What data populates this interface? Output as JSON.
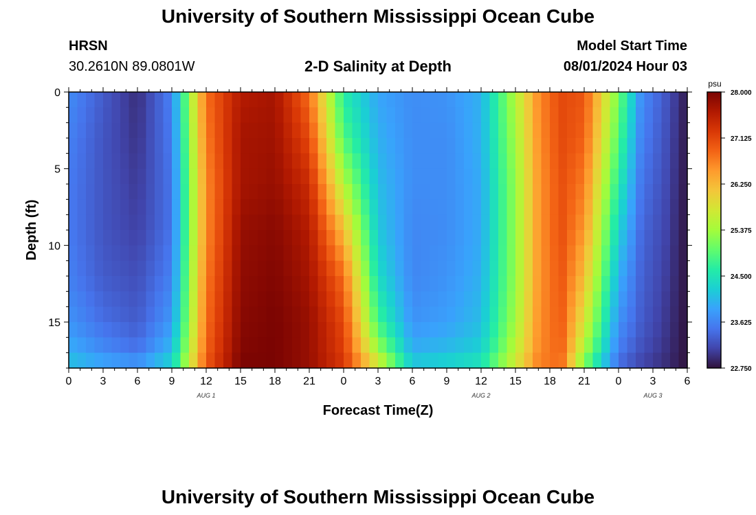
{
  "header": {
    "title": "University of Southern Mississippi Ocean Cube",
    "station": "HRSN",
    "coordinates": "30.2610N  89.0801W",
    "subtitle": "2-D Salinity at Depth",
    "model_start_label": "Model Start Time",
    "model_start_value": "08/01/2024 Hour 03"
  },
  "footer": {
    "title": "University of Southern Mississippi Ocean Cube"
  },
  "chart_data": {
    "type": "heatmap",
    "title": "2-D Salinity at Depth",
    "xlabel": "Forecast Time(Z)",
    "ylabel": "Depth (ft)",
    "x_ticks": [
      "0",
      "3",
      "6",
      "9",
      "12",
      "15",
      "18",
      "21",
      "0",
      "3",
      "6",
      "9",
      "12",
      "15",
      "18",
      "21",
      "0",
      "3",
      "6"
    ],
    "x_range_hours": [
      0,
      54
    ],
    "day_labels": [
      {
        "label": "AUG 1",
        "hour": 12
      },
      {
        "label": "AUG 2",
        "hour": 36
      },
      {
        "label": "AUG 3",
        "hour": 51
      }
    ],
    "y_ticks": [
      "0",
      "5",
      "10",
      "15"
    ],
    "y_range_ft": [
      0,
      18
    ],
    "y_inverted": true,
    "colorbar": {
      "unit": "psu",
      "min": 22.75,
      "max": 28.0,
      "ticks": [
        "28.000",
        "27.125",
        "26.250",
        "25.375",
        "24.500",
        "23.625",
        "22.750"
      ],
      "colors": [
        "#30123b",
        "#4145ab",
        "#4675ed",
        "#39a2fc",
        "#1bcfd4",
        "#24eca6",
        "#61fc6c",
        "#a4fc3b",
        "#d1e834",
        "#f3c63a",
        "#fe9b2d",
        "#f36315",
        "#d93806",
        "#b11901",
        "#7a0402"
      ]
    },
    "salinity_grid": {
      "time_hours": [
        0,
        3,
        6,
        9,
        10.5,
        12,
        15,
        18,
        21,
        24,
        27,
        30,
        33,
        36,
        39,
        41,
        43,
        45,
        48,
        50,
        52,
        54
      ],
      "depth_ft": [
        0,
        3,
        6,
        9,
        12,
        15,
        17,
        18
      ],
      "values_psu": [
        [
          23.7,
          23.6,
          23.55,
          23.55,
          23.6,
          23.75,
          24.0,
          24.2
        ],
        [
          23.3,
          23.25,
          23.25,
          23.25,
          23.3,
          23.45,
          23.7,
          24.0
        ],
        [
          22.95,
          23.0,
          23.05,
          23.1,
          23.2,
          23.3,
          23.5,
          23.9
        ],
        [
          23.6,
          23.55,
          23.5,
          23.5,
          23.6,
          23.8,
          24.1,
          24.4
        ],
        [
          25.3,
          25.2,
          25.1,
          25.1,
          25.2,
          25.3,
          25.5,
          25.7
        ],
        [
          26.8,
          26.7,
          26.6,
          26.6,
          26.7,
          26.8,
          26.9,
          27.0
        ],
        [
          27.6,
          27.7,
          27.7,
          27.8,
          27.85,
          27.9,
          27.95,
          28.0
        ],
        [
          27.7,
          27.75,
          27.8,
          27.9,
          27.95,
          28.0,
          28.0,
          28.0
        ],
        [
          26.8,
          27.1,
          27.4,
          27.6,
          27.7,
          27.8,
          27.8,
          27.8
        ],
        [
          24.6,
          24.9,
          25.5,
          26.2,
          26.8,
          27.1,
          27.2,
          27.3
        ],
        [
          23.9,
          24.0,
          24.1,
          24.2,
          24.4,
          24.8,
          25.4,
          25.9
        ],
        [
          23.7,
          23.7,
          23.7,
          23.65,
          23.65,
          23.75,
          24.0,
          24.3
        ],
        [
          23.75,
          23.7,
          23.7,
          23.7,
          23.75,
          23.85,
          24.1,
          24.4
        ],
        [
          24.0,
          24.0,
          23.95,
          23.95,
          24.0,
          24.1,
          24.3,
          24.6
        ],
        [
          25.5,
          25.4,
          25.3,
          25.3,
          25.3,
          25.4,
          25.6,
          25.8
        ],
        [
          26.6,
          26.55,
          26.5,
          26.5,
          26.5,
          26.55,
          26.6,
          26.7
        ],
        [
          27.1,
          27.1,
          27.05,
          27.05,
          27.0,
          26.95,
          26.9,
          26.8
        ],
        [
          27.0,
          26.9,
          26.7,
          26.5,
          26.2,
          25.8,
          25.4,
          25.0
        ],
        [
          25.1,
          24.9,
          24.6,
          24.3,
          24.0,
          23.75,
          23.55,
          23.4
        ],
        [
          23.7,
          23.6,
          23.5,
          23.4,
          23.35,
          23.3,
          23.2,
          23.1
        ],
        [
          23.3,
          23.25,
          23.2,
          23.15,
          23.1,
          23.05,
          23.0,
          22.95
        ],
        [
          22.8,
          22.78,
          22.77,
          22.76,
          22.76,
          22.75,
          22.75,
          22.75
        ]
      ]
    }
  }
}
